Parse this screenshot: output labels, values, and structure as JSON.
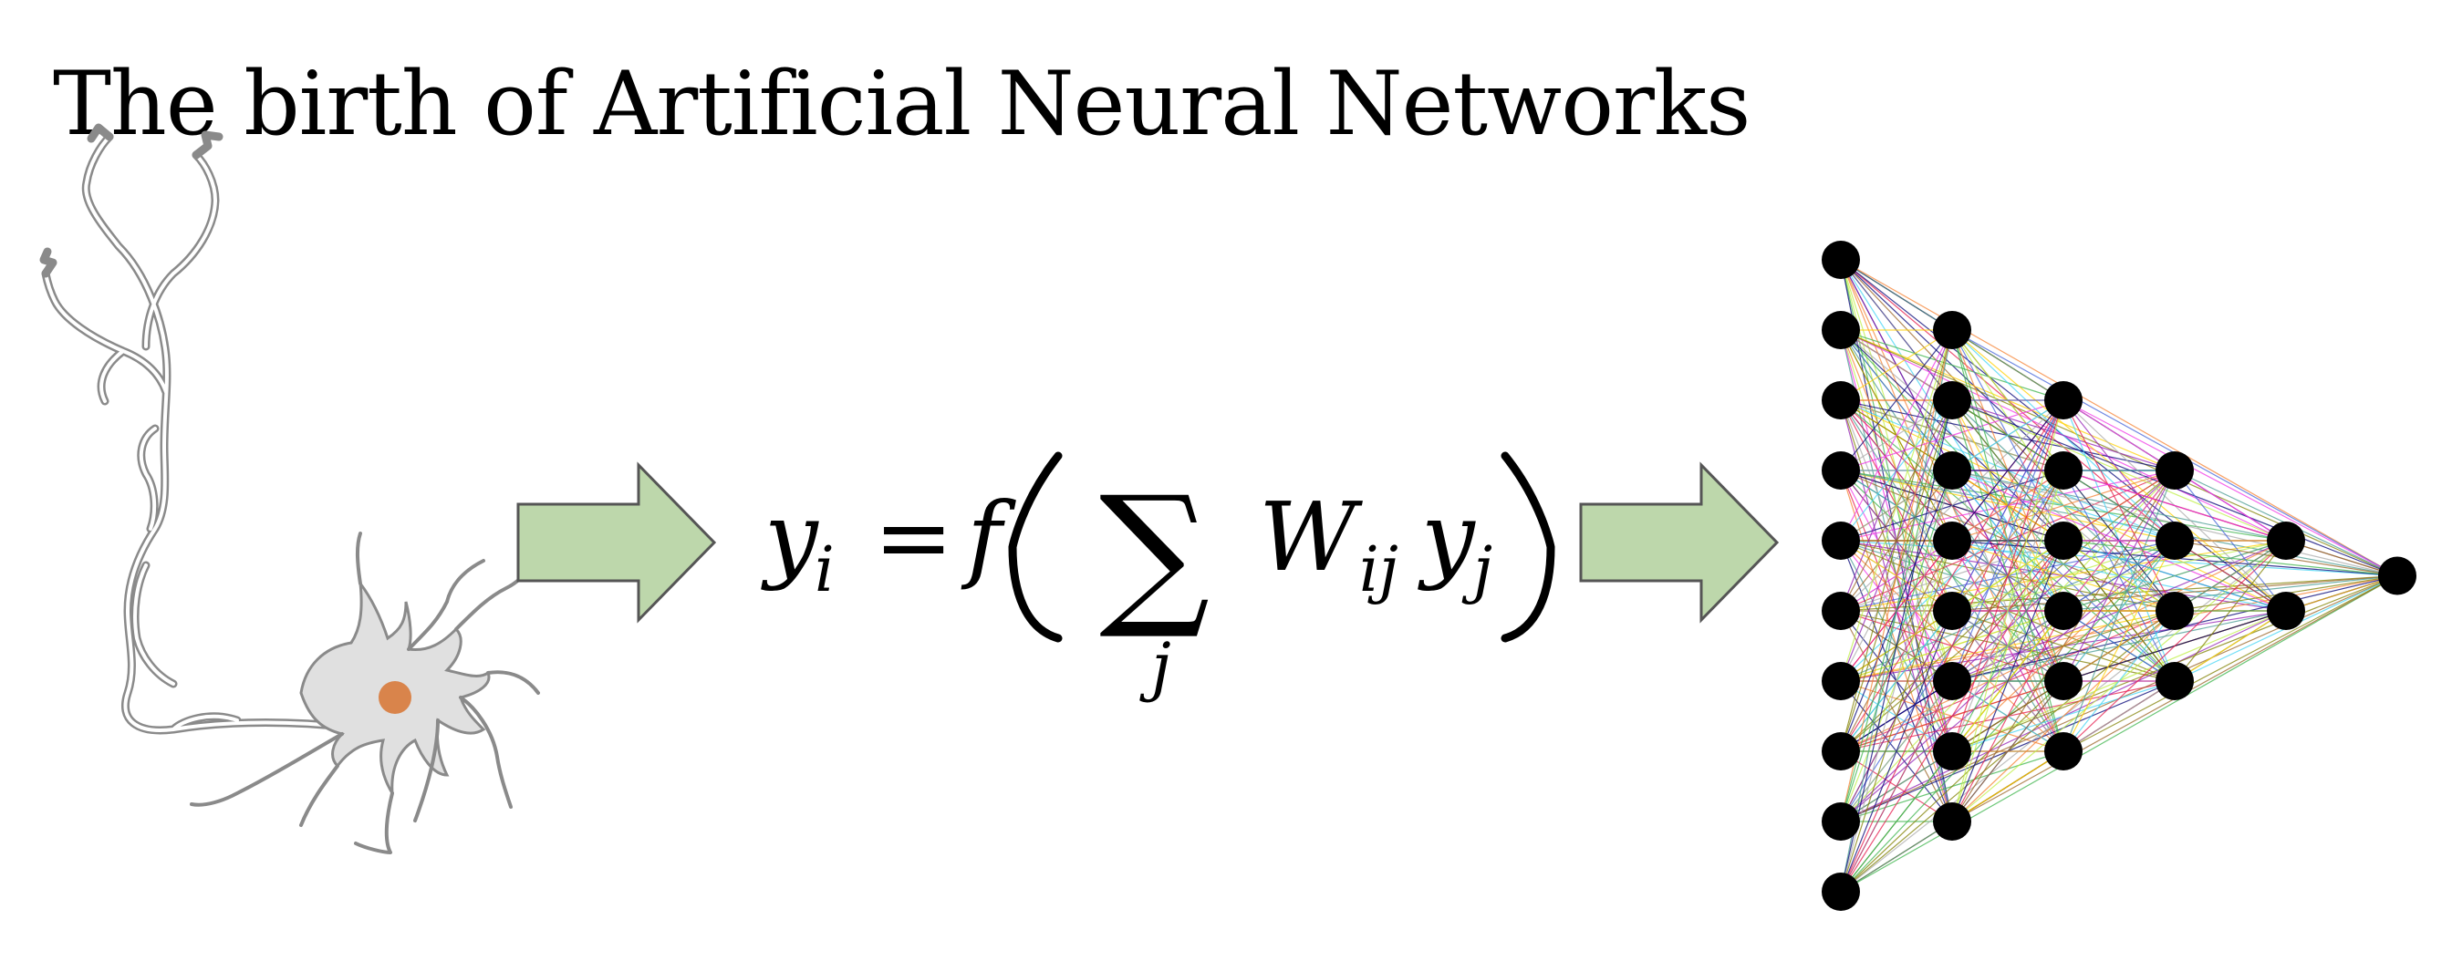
{
  "title": "The birth of Artificial Neural Networks",
  "colors": {
    "arrow_fill": "#bdd7ab",
    "arrow_stroke": "#555555",
    "neuron_body": "#e0e0e0",
    "neuron_outline": "#8a8a8a",
    "nucleus": "#d9844b",
    "node": "#000000"
  },
  "equation": {
    "lhs": "y",
    "lhs_sub": "i",
    "equals": "=",
    "func": "f",
    "sum_symbol": "∑",
    "sum_index": "j",
    "weight": "W",
    "weight_sub": "ij",
    "var": "y",
    "var_sub": "j"
  },
  "network": {
    "layer_sizes": [
      10,
      8,
      6,
      4,
      2,
      1
    ],
    "edge_colors": [
      "#e6194b",
      "#3cb44b",
      "#4363d8",
      "#f58231",
      "#911eb4",
      "#42d4f4",
      "#f032e6",
      "#bfef45",
      "#9a6324",
      "#808000",
      "#000075",
      "#aaaaaa",
      "#ffd000",
      "#469990"
    ]
  },
  "icons": {
    "neuron": "neuron-illustration",
    "arrow": "right-arrow-icon"
  }
}
